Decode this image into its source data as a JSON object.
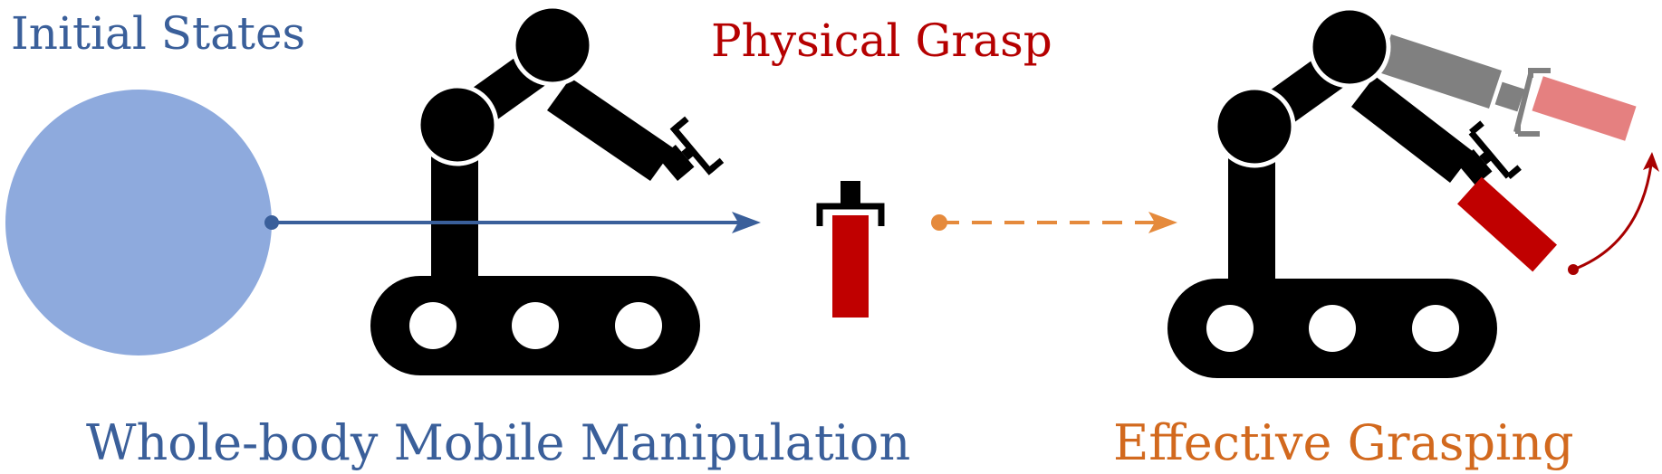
{
  "labels": {
    "initial_states": "Initial States",
    "physical_grasp": "Physical Grasp",
    "whole_body": "Whole-body Mobile Manipulation",
    "effective_grasping": "Effective Grasping"
  },
  "colors": {
    "circle_fill": "#8eaadd",
    "blue_line": "#3a5f9a",
    "orange": "#e58a3c",
    "red": "#c00000",
    "red_dark": "#a80000",
    "pink": "#e58080",
    "gray": "#808080",
    "robot": "#000000"
  },
  "icons": {
    "robot_left": "mobile-manipulator-robot-icon",
    "robot_right": "mobile-manipulator-robot-icon",
    "object": "gripper-with-red-object-icon"
  }
}
